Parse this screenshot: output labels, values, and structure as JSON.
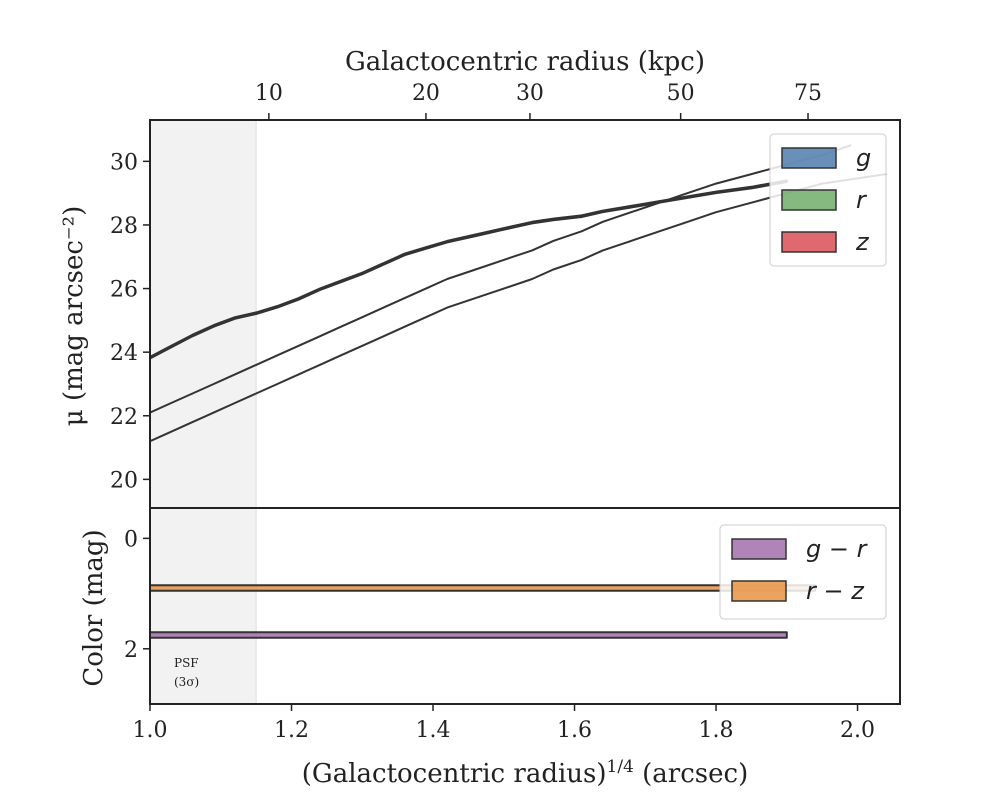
{
  "chart_data": [
    {
      "type": "area",
      "panel": "top",
      "xlabel": "(Galactocentric radius)^{1/4} (arcsec)",
      "ylabel": "μ (mag arcsec⁻²)",
      "top_xlabel": "Galactocentric radius (kpc)",
      "top_ticks": [
        {
          "label": "10",
          "x": 1.168
        },
        {
          "label": "20",
          "x": 1.39
        },
        {
          "label": "30",
          "x": 1.537
        },
        {
          "label": "50",
          "x": 1.75
        },
        {
          "label": "75",
          "x": 1.93
        }
      ],
      "xlim": [
        1.0,
        2.06
      ],
      "ylim": [
        31.3,
        19.1
      ],
      "y_inverted": true,
      "xticks": [
        "1.0",
        "1.2",
        "1.4",
        "1.6",
        "1.8",
        "2.0"
      ],
      "yticks": [
        "20",
        "22",
        "24",
        "26",
        "28",
        "30"
      ],
      "shaded_region": {
        "x": [
          1.0,
          1.15
        ],
        "color": "#f2f2f2"
      },
      "legend_position": "top-right",
      "series": [
        {
          "name": "g",
          "color": "#4878a8",
          "x": [
            1.0,
            1.03,
            1.06,
            1.09,
            1.12,
            1.15,
            1.18,
            1.21,
            1.24,
            1.27,
            1.3,
            1.33,
            1.36,
            1.39,
            1.42,
            1.46,
            1.5,
            1.54,
            1.57,
            1.61,
            1.64,
            1.68,
            1.72,
            1.76,
            1.8,
            1.85,
            1.9
          ],
          "upper": [
            23.85,
            24.2,
            24.55,
            24.85,
            25.1,
            25.25,
            25.45,
            25.7,
            26.0,
            26.25,
            26.5,
            26.8,
            27.1,
            27.3,
            27.5,
            27.7,
            27.9,
            28.1,
            28.2,
            28.3,
            28.45,
            28.6,
            28.75,
            28.9,
            29.05,
            29.2,
            29.4
          ],
          "lower": [
            23.8,
            24.15,
            24.5,
            24.8,
            25.05,
            25.2,
            25.4,
            25.65,
            25.95,
            26.2,
            26.45,
            26.75,
            27.05,
            27.25,
            27.45,
            27.65,
            27.85,
            28.05,
            28.15,
            28.25,
            28.4,
            28.55,
            28.7,
            28.85,
            29.0,
            29.15,
            29.35
          ]
        },
        {
          "name": "r",
          "color": "#6aaa64",
          "x": [
            1.0,
            1.03,
            1.06,
            1.09,
            1.12,
            1.15,
            1.18,
            1.21,
            1.24,
            1.27,
            1.3,
            1.33,
            1.36,
            1.39,
            1.42,
            1.46,
            1.5,
            1.54,
            1.57,
            1.61,
            1.64,
            1.68,
            1.72,
            1.76,
            1.8,
            1.85,
            1.9,
            1.95,
            1.99
          ],
          "upper": [
            22.1,
            22.4,
            22.7,
            23.0,
            23.3,
            23.6,
            23.9,
            24.2,
            24.5,
            24.8,
            25.1,
            25.4,
            25.7,
            26.0,
            26.3,
            26.6,
            26.9,
            27.2,
            27.5,
            27.8,
            28.1,
            28.4,
            28.7,
            29.0,
            29.3,
            29.6,
            29.9,
            30.2,
            30.5
          ],
          "lower": [
            22.1,
            22.4,
            22.7,
            23.0,
            23.3,
            23.6,
            23.9,
            24.2,
            24.5,
            24.8,
            25.1,
            25.4,
            25.7,
            26.0,
            26.3,
            26.6,
            26.9,
            27.2,
            27.5,
            27.8,
            28.1,
            28.4,
            28.7,
            29.0,
            29.3,
            29.6,
            29.9,
            30.2,
            30.5
          ]
        },
        {
          "name": "z",
          "color": "#d9474f",
          "x": [
            1.0,
            1.03,
            1.06,
            1.09,
            1.12,
            1.15,
            1.18,
            1.21,
            1.24,
            1.27,
            1.3,
            1.33,
            1.36,
            1.39,
            1.42,
            1.46,
            1.5,
            1.54,
            1.57,
            1.61,
            1.64,
            1.68,
            1.72,
            1.76,
            1.8,
            1.85,
            1.9,
            1.95,
            2.04
          ],
          "upper": [
            21.2,
            21.5,
            21.8,
            22.1,
            22.4,
            22.7,
            23.0,
            23.3,
            23.6,
            23.9,
            24.2,
            24.5,
            24.8,
            25.1,
            25.4,
            25.7,
            26.0,
            26.3,
            26.6,
            26.9,
            27.2,
            27.5,
            27.8,
            28.1,
            28.4,
            28.7,
            29.0,
            29.3,
            29.6
          ],
          "lower": [
            21.2,
            21.5,
            21.8,
            22.1,
            22.4,
            22.7,
            23.0,
            23.3,
            23.6,
            23.9,
            24.2,
            24.5,
            24.8,
            25.1,
            25.4,
            25.7,
            26.0,
            26.3,
            26.6,
            26.9,
            27.2,
            27.5,
            27.8,
            28.1,
            28.4,
            28.7,
            29.0,
            29.3,
            29.6
          ]
        }
      ]
    },
    {
      "type": "area",
      "panel": "bottom",
      "ylabel": "Color (mag)",
      "xlim": [
        1.0,
        2.06
      ],
      "ylim": [
        -0.55,
        3.0
      ],
      "yticks": [
        "0",
        "2"
      ],
      "annotation": {
        "line1": "PSF",
        "line2": "(3σ)"
      },
      "legend_position": "top-right",
      "series": [
        {
          "name": "g − r",
          "color": "#9e6aa8",
          "x": [
            1.0,
            1.03,
            1.06,
            1.09,
            1.12,
            1.15,
            1.18,
            1.21,
            1.24,
            1.27,
            1.3,
            1.33,
            1.36,
            1.39,
            1.42,
            1.46,
            1.5,
            1.54,
            1.57,
            1.61,
            1.64,
            1.68,
            1.72,
            1.76,
            1.8,
            1.85,
            1.9
          ],
          "upper": [
            1.8,
            1.8,
            1.8,
            1.8,
            1.8,
            1.8,
            1.8,
            1.8,
            1.8,
            1.8,
            1.8,
            1.8,
            1.8,
            1.8,
            1.8,
            1.8,
            1.8,
            1.8,
            1.8,
            1.8,
            1.8,
            1.8,
            1.8,
            1.8,
            1.8,
            1.8,
            1.8
          ],
          "lower": [
            1.7,
            1.7,
            1.7,
            1.7,
            1.7,
            1.7,
            1.7,
            1.7,
            1.7,
            1.7,
            1.7,
            1.7,
            1.7,
            1.7,
            1.7,
            1.7,
            1.7,
            1.7,
            1.7,
            1.7,
            1.7,
            1.7,
            1.7,
            1.7,
            1.7,
            1.7,
            1.7
          ]
        },
        {
          "name": "r − z",
          "color": "#e68f3c",
          "x": [
            1.0,
            1.03,
            1.06,
            1.09,
            1.12,
            1.15,
            1.18,
            1.21,
            1.24,
            1.27,
            1.3,
            1.33,
            1.36,
            1.39,
            1.42,
            1.46,
            1.5,
            1.54,
            1.57,
            1.61,
            1.64,
            1.68,
            1.72,
            1.76,
            1.8,
            1.85,
            1.9,
            1.94
          ],
          "upper": [
            0.95,
            0.95,
            0.95,
            0.95,
            0.95,
            0.95,
            0.95,
            0.95,
            0.95,
            0.95,
            0.95,
            0.95,
            0.95,
            0.95,
            0.95,
            0.95,
            0.95,
            0.95,
            0.95,
            0.95,
            0.95,
            0.95,
            0.95,
            0.95,
            0.95,
            0.95,
            0.95,
            0.95
          ],
          "lower": [
            0.85,
            0.85,
            0.85,
            0.85,
            0.85,
            0.85,
            0.85,
            0.85,
            0.85,
            0.85,
            0.85,
            0.85,
            0.85,
            0.85,
            0.85,
            0.85,
            0.85,
            0.85,
            0.85,
            0.85,
            0.85,
            0.85,
            0.85,
            0.85,
            0.85,
            0.85,
            0.85,
            0.85
          ]
        }
      ]
    }
  ]
}
